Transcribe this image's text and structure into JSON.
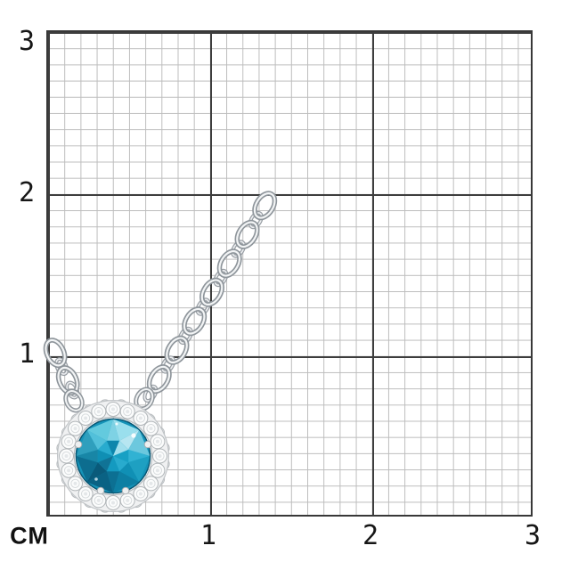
{
  "unit_label": "СМ",
  "axis": {
    "y_labels": [
      "3",
      "2",
      "1"
    ],
    "x_labels": [
      "1",
      "2",
      "3"
    ]
  },
  "grid": {
    "size_cm": 3,
    "cells_per_cm": 10,
    "major_color": "#3d3d3d",
    "minor_color": "#bdbdbd"
  },
  "subject": "Silver cable-chain necklace with round blue topaz halo pendant on centimeter measuring grid",
  "colors": {
    "background": "#ffffff",
    "label_text": "#161616",
    "gem_primary": "#1593b8",
    "gem_highlight": "#b7e6f1",
    "gem_shadow": "#0a5a7a",
    "diamond_white": "#fbfcfc",
    "metal_silver": "#f0f2f3",
    "metal_edge": "#8e959b"
  }
}
